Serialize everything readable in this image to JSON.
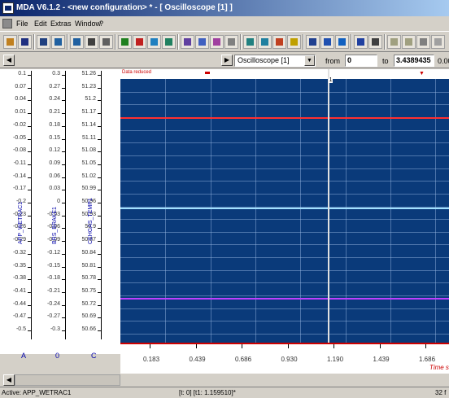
{
  "window": {
    "title": "MDA V6.1.2 - <new configuration> * - [ Oscilloscope [1] ]"
  },
  "menu": [
    "File",
    "Edit",
    "Extras",
    "Window",
    "?"
  ],
  "toolbar": {
    "icons": [
      "open-icon",
      "save-icon",
      "save-all-icon",
      "import-icon",
      "export-icon",
      "print-icon",
      "print-preview-icon",
      "cut-icon",
      "copy-icon",
      "paste-icon",
      "delete-icon",
      "properties-icon",
      "layout-icon",
      "curve-icon",
      "draw-icon",
      "zoom-icon",
      "zoom-fit-icon",
      "marker-icon",
      "color-icon",
      "signal-icon",
      "window-icon",
      "tile-icon",
      "cascade-icon",
      "find-icon",
      "calc-icon",
      "step-icon",
      "align-icon",
      "grid-icon"
    ]
  },
  "nav": {
    "view_select": "Oscilloscope [1]",
    "from_label": "from",
    "from_value": "0",
    "to_label": "to",
    "to_value": "3.4389435",
    "extra_value": "0.00"
  },
  "axes": [
    {
      "name": "APP_WETRAC1",
      "unit": "A",
      "ticks": [
        "0.1",
        "0.07",
        "0.04",
        "0.01",
        "-0.02",
        "-0.05",
        "-0.08",
        "-0.11",
        "-0.14",
        "-0.17",
        "-0.2",
        "-0.23",
        "-0.26",
        "-0.29",
        "-0.32",
        "-0.35",
        "-0.38",
        "-0.41",
        "-0.44",
        "-0.47",
        "-0.5"
      ]
    },
    {
      "name": "BRS_BRAKE1",
      "unit": "0",
      "ticks": [
        "0.3",
        "0.27",
        "0.24",
        "0.21",
        "0.18",
        "0.15",
        "0.12",
        "0.09",
        "0.06",
        "0.03",
        "0",
        "-0.03",
        "-0.06",
        "-0.09",
        "-0.12",
        "-0.15",
        "-0.18",
        "-0.21",
        "-0.24",
        "-0.27",
        "-0.3"
      ]
    },
    {
      "name": "CEHGAS_TEMP1",
      "unit": "C",
      "ticks": [
        "51.26",
        "51.23",
        "51.2",
        "51.17",
        "51.14",
        "51.11",
        "51.08",
        "51.05",
        "51.02",
        "50.99",
        "50.96",
        "50.93",
        "50.9",
        "50.87",
        "50.84",
        "50.81",
        "50.78",
        "50.75",
        "50.72",
        "50.69",
        "50.66"
      ]
    }
  ],
  "plot": {
    "header_text": "Data reduced",
    "cursor_label": "1",
    "background": "#0a3a7a",
    "series_colors": [
      "#ff3030",
      "#a0e0ff",
      "#c040ff"
    ]
  },
  "chart_data": {
    "type": "line",
    "title": "",
    "xlabel": "Time s",
    "x_ticks": [
      "0.183",
      "0.439",
      "0.686",
      "0.930",
      "1.190",
      "1.439",
      "1.686"
    ],
    "series": [
      {
        "name": "APP_WETRAC1",
        "values": [
          0.01,
          0.01
        ]
      },
      {
        "name": "BRS_BRAKE1",
        "values": [
          0.0,
          0.0
        ]
      },
      {
        "name": "CEHGAS_TEMP1",
        "values": [
          50.75,
          50.75
        ]
      }
    ]
  },
  "status": {
    "left": "Active: APP_WETRAC1",
    "middle": "[t: 0] [t1: 1.159510]*",
    "right": "32 f"
  }
}
